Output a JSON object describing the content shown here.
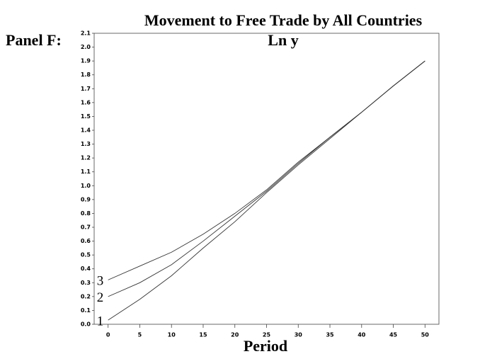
{
  "chart_data": {
    "type": "line",
    "panel": "Panel F:",
    "title": "Movement to Free Trade by All Countries",
    "subtitle": "Ln y",
    "x_label": "Period",
    "x": [
      0,
      5,
      10,
      15,
      20,
      25,
      30,
      35,
      40,
      45,
      50
    ],
    "series": [
      {
        "name": "1",
        "color": "#333333",
        "values": [
          0.03,
          0.18,
          0.35,
          0.55,
          0.74,
          0.95,
          1.15,
          1.34,
          1.53,
          1.72,
          1.9
        ]
      },
      {
        "name": "2",
        "color": "#333333",
        "values": [
          0.2,
          0.3,
          0.43,
          0.6,
          0.78,
          0.96,
          1.16,
          1.35,
          1.53,
          1.72,
          1.9
        ]
      },
      {
        "name": "3",
        "color": "#333333",
        "values": [
          0.32,
          0.42,
          0.52,
          0.65,
          0.8,
          0.97,
          1.17,
          1.35,
          1.53,
          1.72,
          1.9
        ]
      }
    ],
    "xlim": [
      -2.2,
      52.2
    ],
    "ylim": [
      0,
      2.1
    ],
    "xticks": [
      0,
      5,
      10,
      15,
      20,
      25,
      30,
      35,
      40,
      45,
      50
    ],
    "yticks": [
      {
        "value": 0,
        "label": "0.0"
      },
      0.1,
      0.2,
      0.3,
      0.4,
      0.5,
      0.6,
      0.7,
      0.8,
      0.9,
      {
        "value": 1,
        "label": "1.0"
      },
      1.1,
      1.2,
      1.3,
      1.4,
      1.5,
      1.6,
      1.7,
      1.8,
      1.9,
      {
        "value": 2,
        "label": "2.0"
      },
      2.1
    ],
    "grid": false
  }
}
